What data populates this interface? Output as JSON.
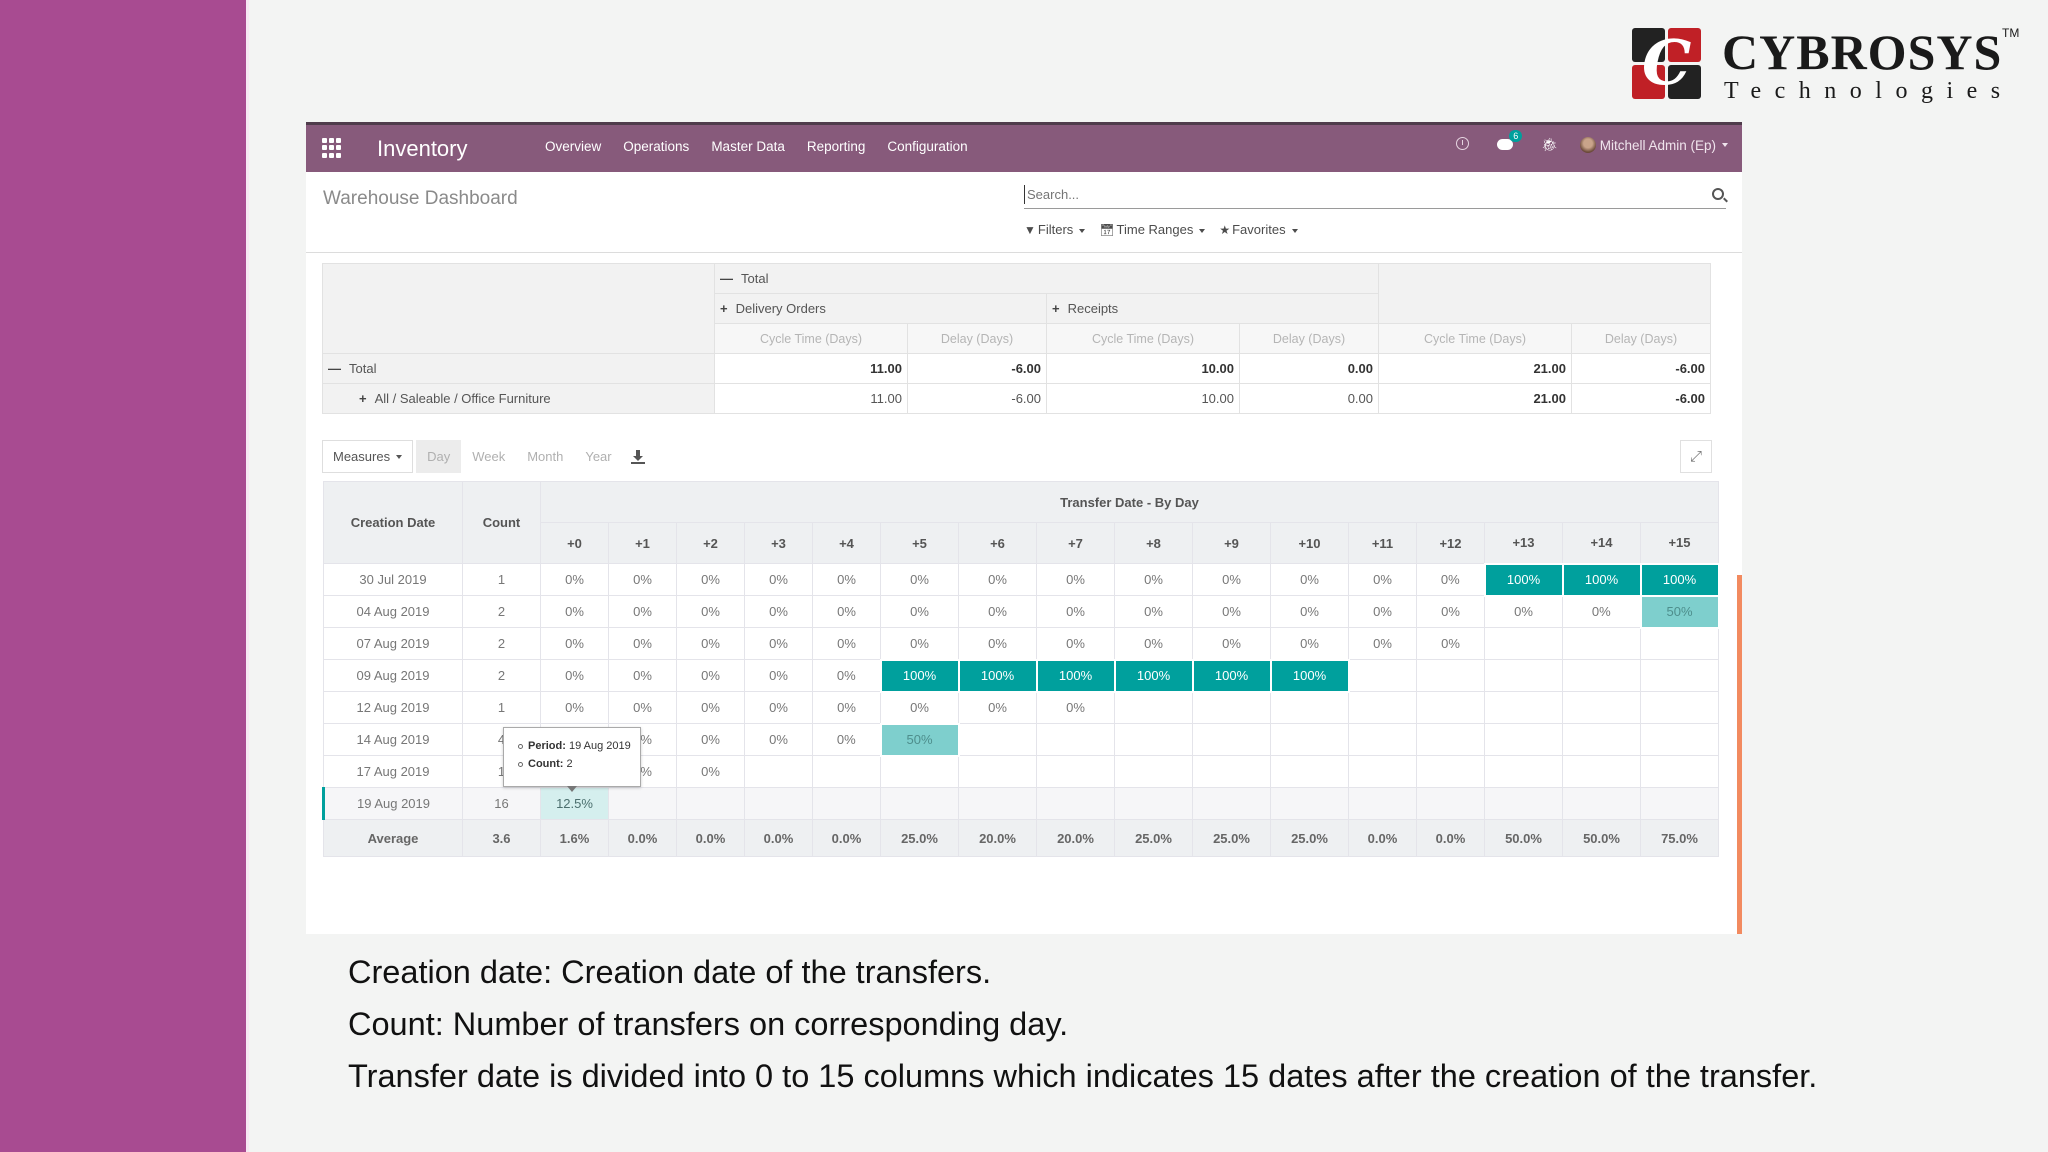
{
  "logo": {
    "name": "CYBROSYS",
    "tm": "TM",
    "subtitle": "Technologies",
    "mark": "C"
  },
  "navbar": {
    "app_name": "Inventory",
    "menu": [
      "Overview",
      "Operations",
      "Master Data",
      "Reporting",
      "Configuration"
    ],
    "chat_badge": "6",
    "user": "Mitchell Admin (Ep)"
  },
  "control": {
    "title": "Warehouse Dashboard",
    "search_placeholder": "Search...",
    "filters": [
      "Filters",
      "Time Ranges",
      "Favorites"
    ]
  },
  "pivot": {
    "col_group_total": "Total",
    "col_groups": [
      "Delivery Orders",
      "Receipts"
    ],
    "measures": [
      "Cycle Time (Days)",
      "Delay (Days)",
      "Cycle Time (Days)",
      "Delay (Days)",
      "Cycle Time (Days)",
      "Delay (Days)"
    ],
    "rows": [
      {
        "label": "Total",
        "values": [
          "11.00",
          "-6.00",
          "10.00",
          "0.00",
          "21.00",
          "-6.00"
        ]
      },
      {
        "label": "All / Saleable / Office Furniture",
        "values": [
          "11.00",
          "-6.00",
          "10.00",
          "0.00",
          "21.00",
          "-6.00"
        ]
      }
    ]
  },
  "cohort_toolbar": {
    "measures_label": "Measures",
    "periods": [
      "Day",
      "Week",
      "Month",
      "Year"
    ],
    "active_period": "Day"
  },
  "cohort": {
    "col_creation": "Creation Date",
    "col_count": "Count",
    "group_title": "Transfer Date - By Day",
    "intervals": [
      "+0",
      "+1",
      "+2",
      "+3",
      "+4",
      "+5",
      "+6",
      "+7",
      "+8",
      "+9",
      "+10",
      "+11",
      "+12",
      "+13",
      "+14",
      "+15"
    ],
    "rows": [
      {
        "date": "30 Jul 2019",
        "count": "1",
        "cells": [
          "0%",
          "0%",
          "0%",
          "0%",
          "0%",
          "0%",
          "0%",
          "0%",
          "0%",
          "0%",
          "0%",
          "0%",
          "0%",
          "100%",
          "100%",
          "100%"
        ]
      },
      {
        "date": "04 Aug 2019",
        "count": "2",
        "cells": [
          "0%",
          "0%",
          "0%",
          "0%",
          "0%",
          "0%",
          "0%",
          "0%",
          "0%",
          "0%",
          "0%",
          "0%",
          "0%",
          "0%",
          "0%",
          "50%"
        ]
      },
      {
        "date": "07 Aug 2019",
        "count": "2",
        "cells": [
          "0%",
          "0%",
          "0%",
          "0%",
          "0%",
          "0%",
          "0%",
          "0%",
          "0%",
          "0%",
          "0%",
          "0%",
          "0%",
          "",
          "",
          ""
        ]
      },
      {
        "date": "09 Aug 2019",
        "count": "2",
        "cells": [
          "0%",
          "0%",
          "0%",
          "0%",
          "0%",
          "100%",
          "100%",
          "100%",
          "100%",
          "100%",
          "100%",
          "",
          "",
          "",
          "",
          ""
        ]
      },
      {
        "date": "12 Aug 2019",
        "count": "1",
        "cells": [
          "0%",
          "0%",
          "0%",
          "0%",
          "0%",
          "0%",
          "0%",
          "0%",
          "",
          "",
          "",
          "",
          "",
          "",
          "",
          ""
        ]
      },
      {
        "date": "14 Aug 2019",
        "count": "4",
        "cells": [
          "0%",
          "0%",
          "0%",
          "0%",
          "0%",
          "50%",
          "",
          "",
          "",
          "",
          "",
          "",
          "",
          "",
          "",
          ""
        ]
      },
      {
        "date": "17 Aug 2019",
        "count": "1",
        "cells": [
          "0%",
          "0%",
          "0%",
          "",
          "",
          "",
          "",
          "",
          "",
          "",
          "",
          "",
          "",
          "",
          "",
          ""
        ]
      },
      {
        "date": "19 Aug 2019",
        "count": "16",
        "cells": [
          "12.5%",
          "",
          "",
          "",
          "",
          "",
          "",
          "",
          "",
          "",
          "",
          "",
          "",
          "",
          "",
          ""
        ]
      }
    ],
    "average": {
      "label": "Average",
      "count": "3.6",
      "cells": [
        "1.6%",
        "0.0%",
        "0.0%",
        "0.0%",
        "0.0%",
        "25.0%",
        "20.0%",
        "20.0%",
        "25.0%",
        "25.0%",
        "25.0%",
        "0.0%",
        "0.0%",
        "50.0%",
        "50.0%",
        "75.0%"
      ]
    },
    "tooltip": {
      "period_label": "Period:",
      "period_value": "19 Aug 2019",
      "count_label": "Count:",
      "count_value": "2"
    }
  },
  "colors": {
    "navbar": "#875a7b",
    "accent": "#00a09d",
    "accent_light": "#7ecfcd",
    "side_band": "#a84b91",
    "scrollbar": "#f28a5f"
  },
  "caption": {
    "lines": [
      "Creation date: Creation date  of the transfers.",
      "Count: Number of transfers on corresponding day.",
      "Transfer date is divided into 0 to 15 columns which indicates 15 dates after the creation of the transfer."
    ]
  }
}
